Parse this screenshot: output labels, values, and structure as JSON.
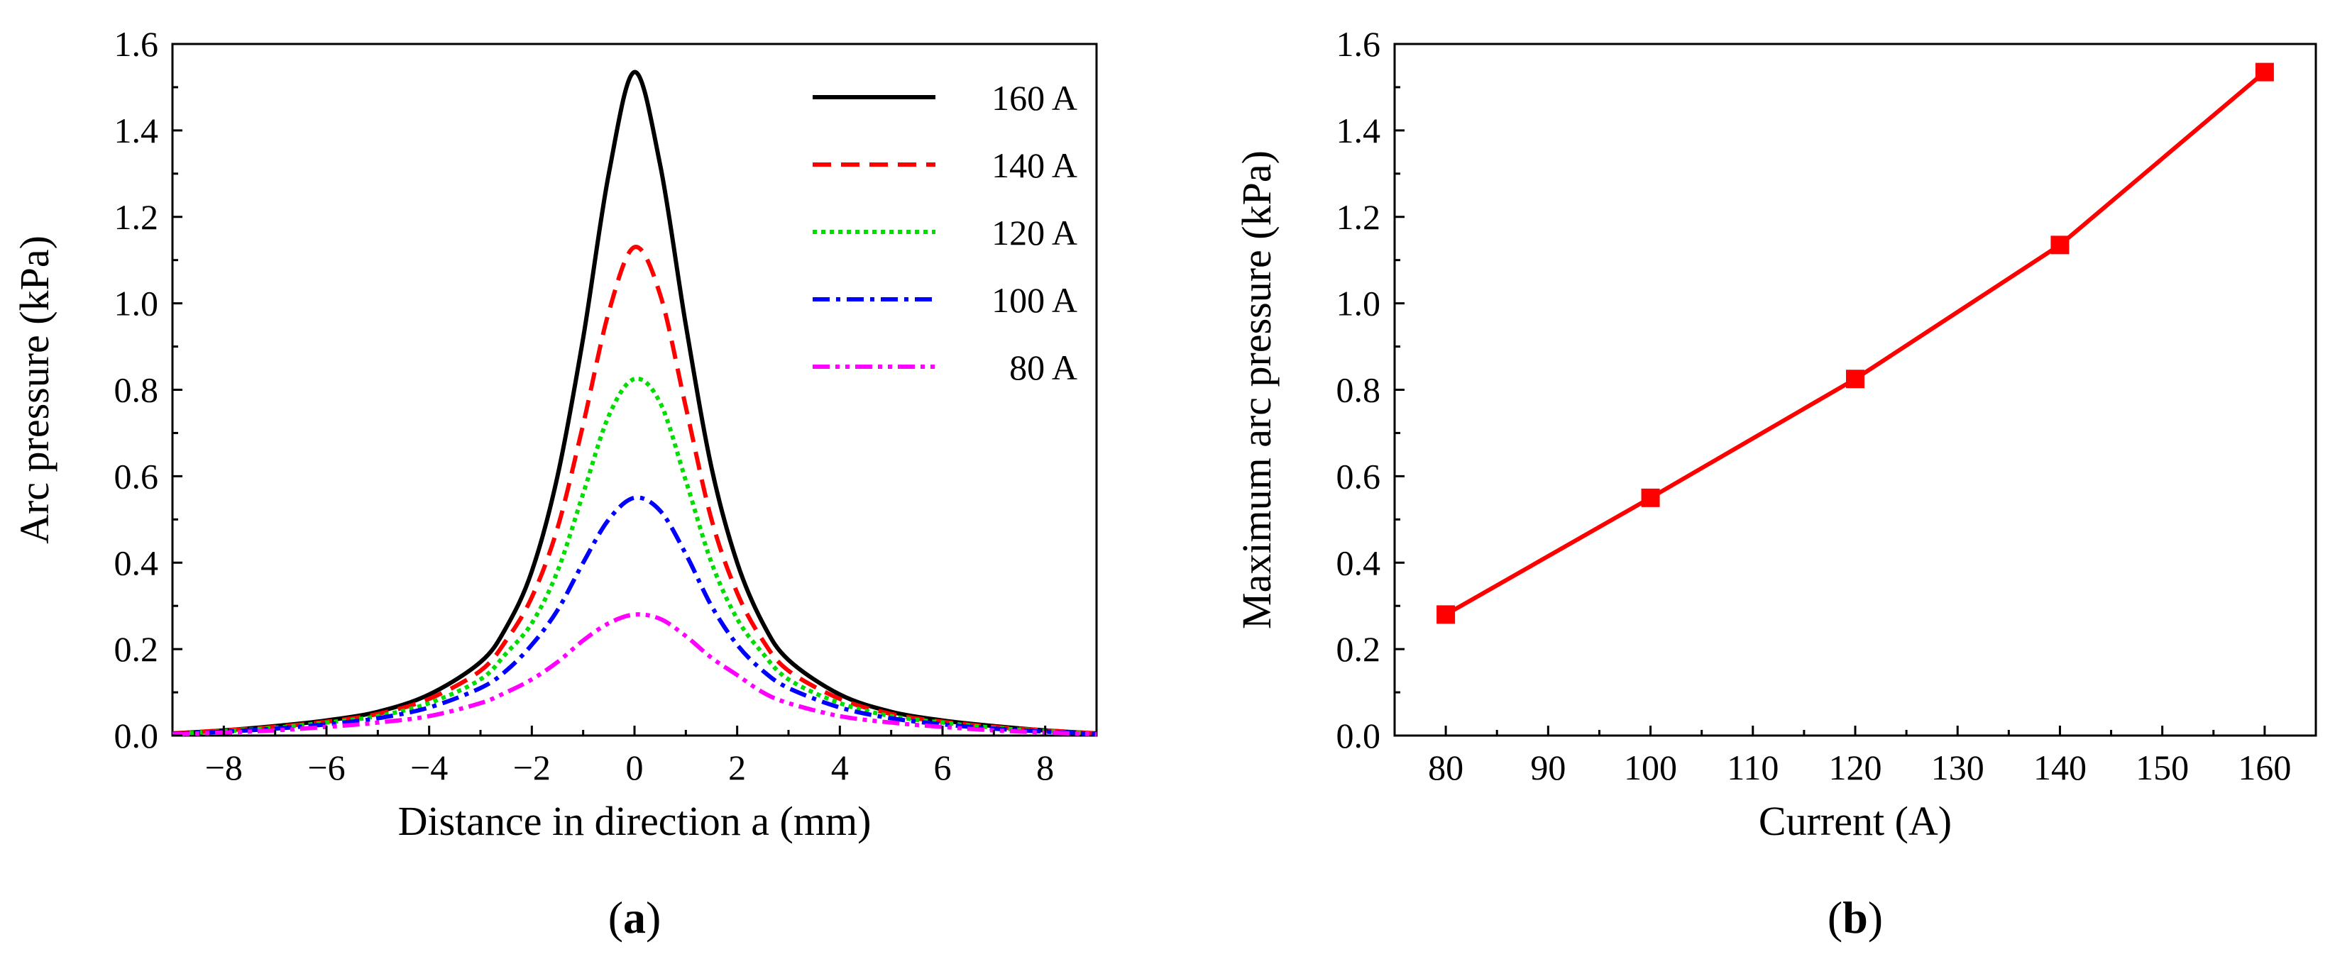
{
  "chart_data": [
    {
      "type": "line",
      "panel": "a",
      "panel_label_open": "(",
      "panel_label_letter": "a",
      "panel_label_close": ")",
      "title": "",
      "xlabel": "Distance in direction a (mm)",
      "ylabel": "Arc pressure (kPa)",
      "xlim": [
        -9,
        9
      ],
      "ylim": [
        0,
        1.6
      ],
      "xticks": [
        -8,
        -6,
        -4,
        -2,
        0,
        2,
        4,
        6,
        8
      ],
      "xtick_labels": [
        "−8",
        "−6",
        "−4",
        "−2",
        "0",
        "2",
        "4",
        "6",
        "8"
      ],
      "yticks": [
        0.0,
        0.2,
        0.4,
        0.6,
        0.8,
        1.0,
        1.2,
        1.4,
        1.6
      ],
      "ytick_labels": [
        "0.0",
        "0.2",
        "0.4",
        "0.6",
        "0.8",
        "1.0",
        "1.2",
        "1.4",
        "1.6"
      ],
      "grid": false,
      "legend_position": "top-right",
      "x": [
        -9,
        -8,
        -7,
        -6,
        -5,
        -4,
        -3,
        -2.5,
        -2,
        -1.5,
        -1,
        -0.5,
        0,
        0.5,
        1,
        1.5,
        2,
        2.5,
        3,
        4,
        5,
        6,
        7,
        8,
        9
      ],
      "series": [
        {
          "name": "160 A",
          "label": "160 A",
          "color": "#000000",
          "dash": "solid",
          "values": [
            0.005,
            0.012,
            0.022,
            0.035,
            0.055,
            0.095,
            0.17,
            0.25,
            0.38,
            0.6,
            0.92,
            1.3,
            1.535,
            1.32,
            0.95,
            0.62,
            0.4,
            0.26,
            0.175,
            0.095,
            0.055,
            0.035,
            0.022,
            0.012,
            0.005
          ]
        },
        {
          "name": "140 A",
          "label": "140 A",
          "color": "#ff0000",
          "dash": "dashed",
          "values": [
            0.005,
            0.012,
            0.02,
            0.032,
            0.05,
            0.085,
            0.15,
            0.22,
            0.32,
            0.48,
            0.72,
            0.98,
            1.13,
            1.02,
            0.76,
            0.5,
            0.33,
            0.22,
            0.15,
            0.085,
            0.05,
            0.032,
            0.02,
            0.012,
            0.005
          ]
        },
        {
          "name": "120 A",
          "label": "120 A",
          "color": "#00dd00",
          "dash": "dotted",
          "values": [
            0.004,
            0.01,
            0.018,
            0.03,
            0.045,
            0.075,
            0.13,
            0.19,
            0.26,
            0.38,
            0.56,
            0.74,
            0.825,
            0.77,
            0.59,
            0.4,
            0.27,
            0.19,
            0.13,
            0.075,
            0.045,
            0.03,
            0.018,
            0.01,
            0.004
          ]
        },
        {
          "name": "100 A",
          "label": "100 A",
          "color": "#0000ff",
          "dash": "dashdot",
          "values": [
            0.004,
            0.009,
            0.016,
            0.026,
            0.04,
            0.065,
            0.11,
            0.15,
            0.21,
            0.29,
            0.4,
            0.5,
            0.55,
            0.52,
            0.42,
            0.3,
            0.21,
            0.15,
            0.11,
            0.065,
            0.04,
            0.026,
            0.016,
            0.009,
            0.004
          ]
        },
        {
          "name": "80 A",
          "label": "80 A",
          "color": "#ff00ff",
          "dash": "dashdotdot",
          "values": [
            0.003,
            0.007,
            0.012,
            0.02,
            0.03,
            0.045,
            0.075,
            0.1,
            0.13,
            0.17,
            0.22,
            0.26,
            0.28,
            0.27,
            0.23,
            0.18,
            0.14,
            0.1,
            0.075,
            0.045,
            0.03,
            0.02,
            0.012,
            0.007,
            0.003
          ]
        }
      ]
    },
    {
      "type": "line",
      "panel": "b",
      "panel_label_open": "(",
      "panel_label_letter": "b",
      "panel_label_close": ")",
      "title": "",
      "xlabel": "Current (A)",
      "ylabel": "Maximum arc pressure (kPa)",
      "xlim": [
        75,
        165
      ],
      "ylim": [
        0,
        1.6
      ],
      "xticks": [
        80,
        90,
        100,
        110,
        120,
        130,
        140,
        150,
        160
      ],
      "xtick_labels": [
        "80",
        "90",
        "100",
        "110",
        "120",
        "130",
        "140",
        "150",
        "160"
      ],
      "yticks": [
        0.0,
        0.2,
        0.4,
        0.6,
        0.8,
        1.0,
        1.2,
        1.4,
        1.6
      ],
      "ytick_labels": [
        "0.0",
        "0.2",
        "0.4",
        "0.6",
        "0.8",
        "1.0",
        "1.2",
        "1.4",
        "1.6"
      ],
      "grid": false,
      "legend_position": "none",
      "series": [
        {
          "name": "Maximum arc pressure",
          "color": "#ff0000",
          "marker": "square",
          "x": [
            80,
            100,
            120,
            140,
            160
          ],
          "values": [
            0.28,
            0.55,
            0.825,
            1.135,
            1.535
          ]
        }
      ]
    }
  ]
}
